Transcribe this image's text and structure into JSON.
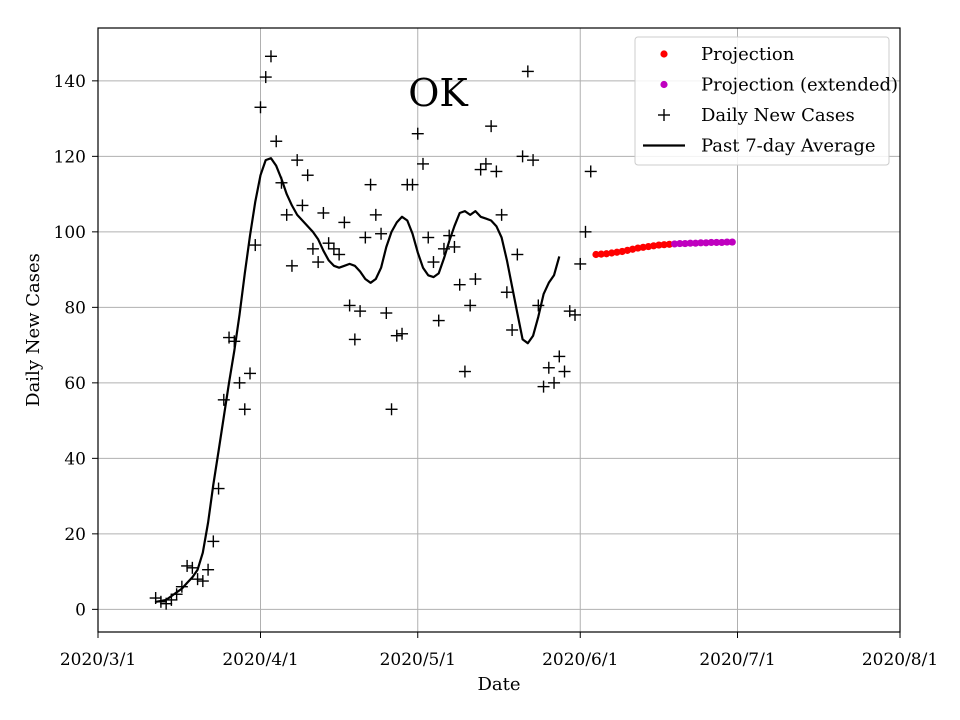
{
  "chart_data": {
    "type": "line",
    "title": "OK",
    "xlabel": "Date",
    "ylabel": "Daily New Cases",
    "x_range": [
      "2020-03-01",
      "2020-08-01"
    ],
    "ylim": [
      -6,
      154
    ],
    "x_ticks": [
      {
        "date": "2020-03-01",
        "label": "2020/3/1"
      },
      {
        "date": "2020-04-01",
        "label": "2020/4/1"
      },
      {
        "date": "2020-05-01",
        "label": "2020/5/1"
      },
      {
        "date": "2020-06-01",
        "label": "2020/6/1"
      },
      {
        "date": "2020-07-01",
        "label": "2020/7/1"
      },
      {
        "date": "2020-08-01",
        "label": "2020/8/1"
      }
    ],
    "y_ticks": [
      {
        "value": 0,
        "label": "0"
      },
      {
        "value": 20,
        "label": "20"
      },
      {
        "value": 40,
        "label": "40"
      },
      {
        "value": 60,
        "label": "60"
      },
      {
        "value": 80,
        "label": "80"
      },
      {
        "value": 100,
        "label": "100"
      },
      {
        "value": 120,
        "label": "120"
      },
      {
        "value": 140,
        "label": "140"
      }
    ],
    "grid": true,
    "legend_position": "top-right",
    "series": [
      {
        "name": "Daily New Cases",
        "kind": "scatter",
        "marker": "plus",
        "color": "#000000",
        "points": [
          [
            "2020-03-12",
            3
          ],
          [
            "2020-03-13",
            2
          ],
          [
            "2020-03-14",
            1.5
          ],
          [
            "2020-03-15",
            2.5
          ],
          [
            "2020-03-16",
            4
          ],
          [
            "2020-03-17",
            6
          ],
          [
            "2020-03-18",
            11.5
          ],
          [
            "2020-03-19",
            11
          ],
          [
            "2020-03-20",
            8
          ],
          [
            "2020-03-21",
            7.5
          ],
          [
            "2020-03-22",
            10.5
          ],
          [
            "2020-03-23",
            18
          ],
          [
            "2020-03-24",
            32
          ],
          [
            "2020-03-25",
            55.5
          ],
          [
            "2020-03-26",
            72
          ],
          [
            "2020-03-27",
            71
          ],
          [
            "2020-03-28",
            60
          ],
          [
            "2020-03-29",
            53
          ],
          [
            "2020-03-30",
            62.5
          ],
          [
            "2020-03-31",
            96.5
          ],
          [
            "2020-04-01",
            133
          ],
          [
            "2020-04-02",
            141
          ],
          [
            "2020-04-03",
            146.5
          ],
          [
            "2020-04-04",
            124
          ],
          [
            "2020-04-05",
            113
          ],
          [
            "2020-04-06",
            104.5
          ],
          [
            "2020-04-07",
            91
          ],
          [
            "2020-04-08",
            119
          ],
          [
            "2020-04-09",
            107
          ],
          [
            "2020-04-10",
            115
          ],
          [
            "2020-04-11",
            95.5
          ],
          [
            "2020-04-12",
            92
          ],
          [
            "2020-04-13",
            105
          ],
          [
            "2020-04-14",
            97
          ],
          [
            "2020-04-15",
            95.5
          ],
          [
            "2020-04-16",
            94
          ],
          [
            "2020-04-17",
            102.5
          ],
          [
            "2020-04-18",
            80.5
          ],
          [
            "2020-04-19",
            71.5
          ],
          [
            "2020-04-20",
            79
          ],
          [
            "2020-04-21",
            98.5
          ],
          [
            "2020-04-22",
            112.5
          ],
          [
            "2020-04-23",
            104.5
          ],
          [
            "2020-04-24",
            99.5
          ],
          [
            "2020-04-25",
            78.5
          ],
          [
            "2020-04-26",
            53
          ],
          [
            "2020-04-27",
            72.5
          ],
          [
            "2020-04-28",
            73
          ],
          [
            "2020-04-29",
            112.5
          ],
          [
            "2020-04-30",
            112.5
          ],
          [
            "2020-05-01",
            126
          ],
          [
            "2020-05-02",
            118
          ],
          [
            "2020-05-03",
            98.5
          ],
          [
            "2020-05-04",
            92
          ],
          [
            "2020-05-05",
            76.5
          ],
          [
            "2020-05-06",
            95.5
          ],
          [
            "2020-05-07",
            99
          ],
          [
            "2020-05-08",
            96
          ],
          [
            "2020-05-09",
            86
          ],
          [
            "2020-05-10",
            63
          ],
          [
            "2020-05-11",
            80.5
          ],
          [
            "2020-05-12",
            87.5
          ],
          [
            "2020-05-13",
            116.5
          ],
          [
            "2020-05-14",
            118
          ],
          [
            "2020-05-15",
            128
          ],
          [
            "2020-05-16",
            116
          ],
          [
            "2020-05-17",
            104.5
          ],
          [
            "2020-05-18",
            84
          ],
          [
            "2020-05-19",
            74
          ],
          [
            "2020-05-20",
            94
          ],
          [
            "2020-05-21",
            120
          ],
          [
            "2020-05-22",
            142.5
          ],
          [
            "2020-05-23",
            119
          ],
          [
            "2020-05-24",
            80.5
          ],
          [
            "2020-05-25",
            59
          ],
          [
            "2020-05-26",
            64
          ],
          [
            "2020-05-27",
            60
          ],
          [
            "2020-05-28",
            67
          ],
          [
            "2020-05-29",
            63
          ],
          [
            "2020-05-30",
            79
          ],
          [
            "2020-05-31",
            78
          ],
          [
            "2020-06-01",
            91.5
          ],
          [
            "2020-06-02",
            100
          ],
          [
            "2020-06-03",
            116
          ]
        ]
      },
      {
        "name": "Past 7-day Average",
        "kind": "line",
        "color": "#000000",
        "points": [
          [
            "2020-03-12",
            2
          ],
          [
            "2020-03-13",
            2.2
          ],
          [
            "2020-03-14",
            2.5
          ],
          [
            "2020-03-15",
            3.5
          ],
          [
            "2020-03-16",
            4.5
          ],
          [
            "2020-03-17",
            5.5
          ],
          [
            "2020-03-18",
            7
          ],
          [
            "2020-03-19",
            8.5
          ],
          [
            "2020-03-20",
            10.5
          ],
          [
            "2020-03-21",
            15
          ],
          [
            "2020-03-22",
            23
          ],
          [
            "2020-03-23",
            33
          ],
          [
            "2020-03-24",
            42
          ],
          [
            "2020-03-25",
            51
          ],
          [
            "2020-03-26",
            60
          ],
          [
            "2020-03-27",
            68.5
          ],
          [
            "2020-03-28",
            78
          ],
          [
            "2020-03-29",
            89
          ],
          [
            "2020-03-30",
            99
          ],
          [
            "2020-03-31",
            108
          ],
          [
            "2020-04-01",
            115
          ],
          [
            "2020-04-02",
            119
          ],
          [
            "2020-04-03",
            119.5
          ],
          [
            "2020-04-04",
            117.5
          ],
          [
            "2020-04-05",
            114
          ],
          [
            "2020-04-06",
            110
          ],
          [
            "2020-04-07",
            107
          ],
          [
            "2020-04-08",
            104.5
          ],
          [
            "2020-04-09",
            103
          ],
          [
            "2020-04-10",
            101.5
          ],
          [
            "2020-04-11",
            100
          ],
          [
            "2020-04-12",
            98
          ],
          [
            "2020-04-13",
            95
          ],
          [
            "2020-04-14",
            92.5
          ],
          [
            "2020-04-15",
            91
          ],
          [
            "2020-04-16",
            90.5
          ],
          [
            "2020-04-17",
            91
          ],
          [
            "2020-04-18",
            91.5
          ],
          [
            "2020-04-19",
            91
          ],
          [
            "2020-04-20",
            89.5
          ],
          [
            "2020-04-21",
            87.5
          ],
          [
            "2020-04-22",
            86.5
          ],
          [
            "2020-04-23",
            87.5
          ],
          [
            "2020-04-24",
            90.5
          ],
          [
            "2020-04-25",
            96
          ],
          [
            "2020-04-26",
            100
          ],
          [
            "2020-04-27",
            102.5
          ],
          [
            "2020-04-28",
            104
          ],
          [
            "2020-04-29",
            103
          ],
          [
            "2020-04-30",
            99.5
          ],
          [
            "2020-05-01",
            94.5
          ],
          [
            "2020-05-02",
            90.5
          ],
          [
            "2020-05-03",
            88.5
          ],
          [
            "2020-05-04",
            88
          ],
          [
            "2020-05-05",
            89
          ],
          [
            "2020-05-06",
            93
          ],
          [
            "2020-05-07",
            97.5
          ],
          [
            "2020-05-08",
            101.5
          ],
          [
            "2020-05-09",
            105
          ],
          [
            "2020-05-10",
            105.5
          ],
          [
            "2020-05-11",
            104.5
          ],
          [
            "2020-05-12",
            105.5
          ],
          [
            "2020-05-13",
            104
          ],
          [
            "2020-05-14",
            103.5
          ],
          [
            "2020-05-15",
            103
          ],
          [
            "2020-05-16",
            101.5
          ],
          [
            "2020-05-17",
            98.5
          ],
          [
            "2020-05-18",
            92.5
          ],
          [
            "2020-05-19",
            85.5
          ],
          [
            "2020-05-20",
            78.5
          ],
          [
            "2020-05-21",
            71.5
          ],
          [
            "2020-05-22",
            70.5
          ],
          [
            "2020-05-23",
            72.5
          ],
          [
            "2020-05-24",
            77.5
          ],
          [
            "2020-05-25",
            83.5
          ],
          [
            "2020-05-26",
            86.5
          ],
          [
            "2020-05-27",
            88.5
          ],
          [
            "2020-05-28",
            93.5
          ]
        ]
      },
      {
        "name": "Projection",
        "kind": "scatter",
        "marker": "circle",
        "color": "#ff0000",
        "points": [
          [
            "2020-06-04",
            94
          ],
          [
            "2020-06-05",
            94.1
          ],
          [
            "2020-06-06",
            94.2
          ],
          [
            "2020-06-07",
            94.4
          ],
          [
            "2020-06-08",
            94.6
          ],
          [
            "2020-06-09",
            94.8
          ],
          [
            "2020-06-10",
            95.1
          ],
          [
            "2020-06-11",
            95.4
          ],
          [
            "2020-06-12",
            95.7
          ],
          [
            "2020-06-13",
            95.9
          ],
          [
            "2020-06-14",
            96.1
          ],
          [
            "2020-06-15",
            96.3
          ],
          [
            "2020-06-16",
            96.5
          ],
          [
            "2020-06-17",
            96.6
          ],
          [
            "2020-06-18",
            96.7
          ]
        ]
      },
      {
        "name": "Projection (extended)",
        "kind": "scatter",
        "marker": "circle",
        "color": "#bf00bf",
        "points": [
          [
            "2020-06-19",
            96.8
          ],
          [
            "2020-06-20",
            96.9
          ],
          [
            "2020-06-21",
            96.9
          ],
          [
            "2020-06-22",
            97
          ],
          [
            "2020-06-23",
            97
          ],
          [
            "2020-06-24",
            97.1
          ],
          [
            "2020-06-25",
            97.1
          ],
          [
            "2020-06-26",
            97.2
          ],
          [
            "2020-06-27",
            97.2
          ],
          [
            "2020-06-28",
            97.2
          ],
          [
            "2020-06-29",
            97.3
          ],
          [
            "2020-06-30",
            97.3
          ]
        ]
      }
    ],
    "legend": [
      {
        "label": "Projection",
        "marker": "circle",
        "color": "#ff0000"
      },
      {
        "label": "Projection (extended)",
        "marker": "circle",
        "color": "#bf00bf"
      },
      {
        "label": "Daily New Cases",
        "marker": "plus",
        "color": "#000000"
      },
      {
        "label": "Past 7-day Average",
        "marker": "line",
        "color": "#000000"
      }
    ]
  }
}
